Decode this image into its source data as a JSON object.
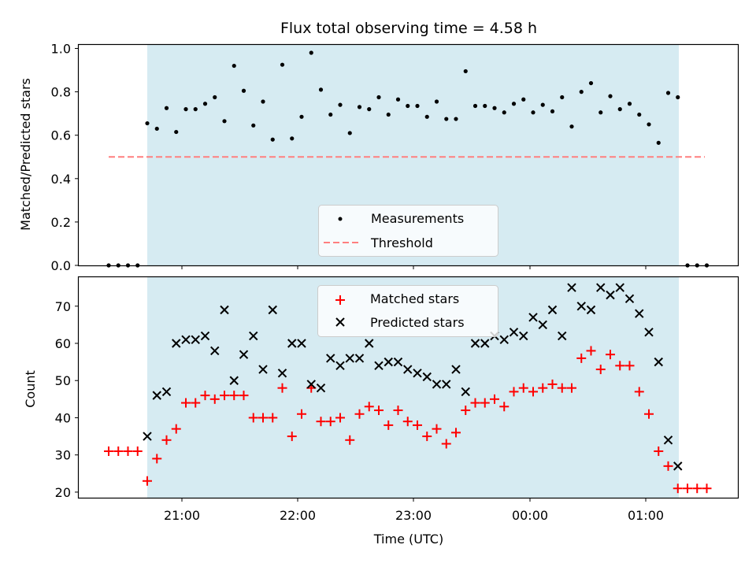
{
  "chart_data": {
    "type": "scatter",
    "title": "Flux total observing time = 4.58 h",
    "xlabel": "Time (UTC)",
    "x_tick_labels": [
      "21:00",
      "22:00",
      "23:00",
      "00:00",
      "01:00"
    ],
    "shaded_region": {
      "color": "#add8e6"
    },
    "panels": [
      {
        "ylabel": "Matched/Predicted stars",
        "ylim": [
          0,
          1.02
        ],
        "yticks": [
          "0.0",
          "0.2",
          "0.4",
          "0.6",
          "0.8",
          "1.0"
        ],
        "legend": {
          "placement": "lower-center",
          "entries": [
            "Measurements",
            "Threshold"
          ]
        },
        "series": [
          {
            "name": "Measurements",
            "marker": "dot",
            "color": "#000000",
            "y": [
              0,
              0,
              0,
              0,
              0.655,
              0.63,
              0.725,
              0.615,
              0.72,
              0.72,
              0.745,
              0.775,
              0.665,
              0.92,
              0.805,
              0.645,
              0.755,
              0.58,
              0.925,
              0.585,
              0.685,
              0.98,
              0.81,
              0.695,
              0.74,
              0.61,
              0.73,
              0.72,
              0.775,
              0.695,
              0.765,
              0.735,
              0.735,
              0.685,
              0.755,
              0.675,
              0.675,
              0.895,
              0.735,
              0.735,
              0.725,
              0.705,
              0.745,
              0.765,
              0.705,
              0.74,
              0.71,
              0.775,
              0.64,
              0.8,
              0.84,
              0.705,
              0.78,
              0.72,
              0.745,
              0.695,
              0.65,
              0.565,
              0.795,
              0.775,
              0,
              0,
              0
            ]
          },
          {
            "name": "Threshold",
            "marker": "dashed-line",
            "color": "#ff7f7f",
            "value": 0.5
          }
        ]
      },
      {
        "ylabel": "Count",
        "ylim": [
          18.5,
          78
        ],
        "yticks": [
          "20",
          "30",
          "40",
          "50",
          "60",
          "70"
        ],
        "legend": {
          "placement": "upper-center",
          "entries": [
            "Matched stars",
            "Predicted stars"
          ]
        },
        "series": [
          {
            "name": "Matched stars",
            "marker": "plus",
            "color": "#ff0000",
            "y": [
              31,
              31,
              31,
              31,
              23,
              29,
              34,
              37,
              44,
              44,
              46,
              45,
              46,
              46,
              46,
              40,
              40,
              40,
              48,
              35,
              41,
              48,
              39,
              39,
              40,
              34,
              41,
              43,
              42,
              38,
              42,
              39,
              38,
              35,
              37,
              33,
              36,
              42,
              44,
              44,
              45,
              43,
              47,
              48,
              47,
              48,
              49,
              48,
              48,
              56,
              58,
              53,
              57,
              54,
              54,
              47,
              41,
              31,
              27,
              21,
              21,
              21,
              21
            ]
          },
          {
            "name": "Predicted stars",
            "marker": "x",
            "color": "#000000",
            "y": [
              null,
              null,
              null,
              null,
              35,
              46,
              47,
              60,
              61,
              61,
              62,
              58,
              69,
              50,
              57,
              62,
              53,
              69,
              52,
              60,
              60,
              49,
              48,
              56,
              54,
              56,
              56,
              60,
              54,
              55,
              55,
              53,
              52,
              51,
              49,
              49,
              53,
              47,
              60,
              60,
              62,
              61,
              63,
              62,
              67,
              65,
              69,
              62,
              75,
              70,
              69,
              75,
              73,
              75,
              72,
              68,
              63,
              55,
              34,
              27,
              null,
              null,
              null
            ]
          }
        ]
      }
    ]
  }
}
